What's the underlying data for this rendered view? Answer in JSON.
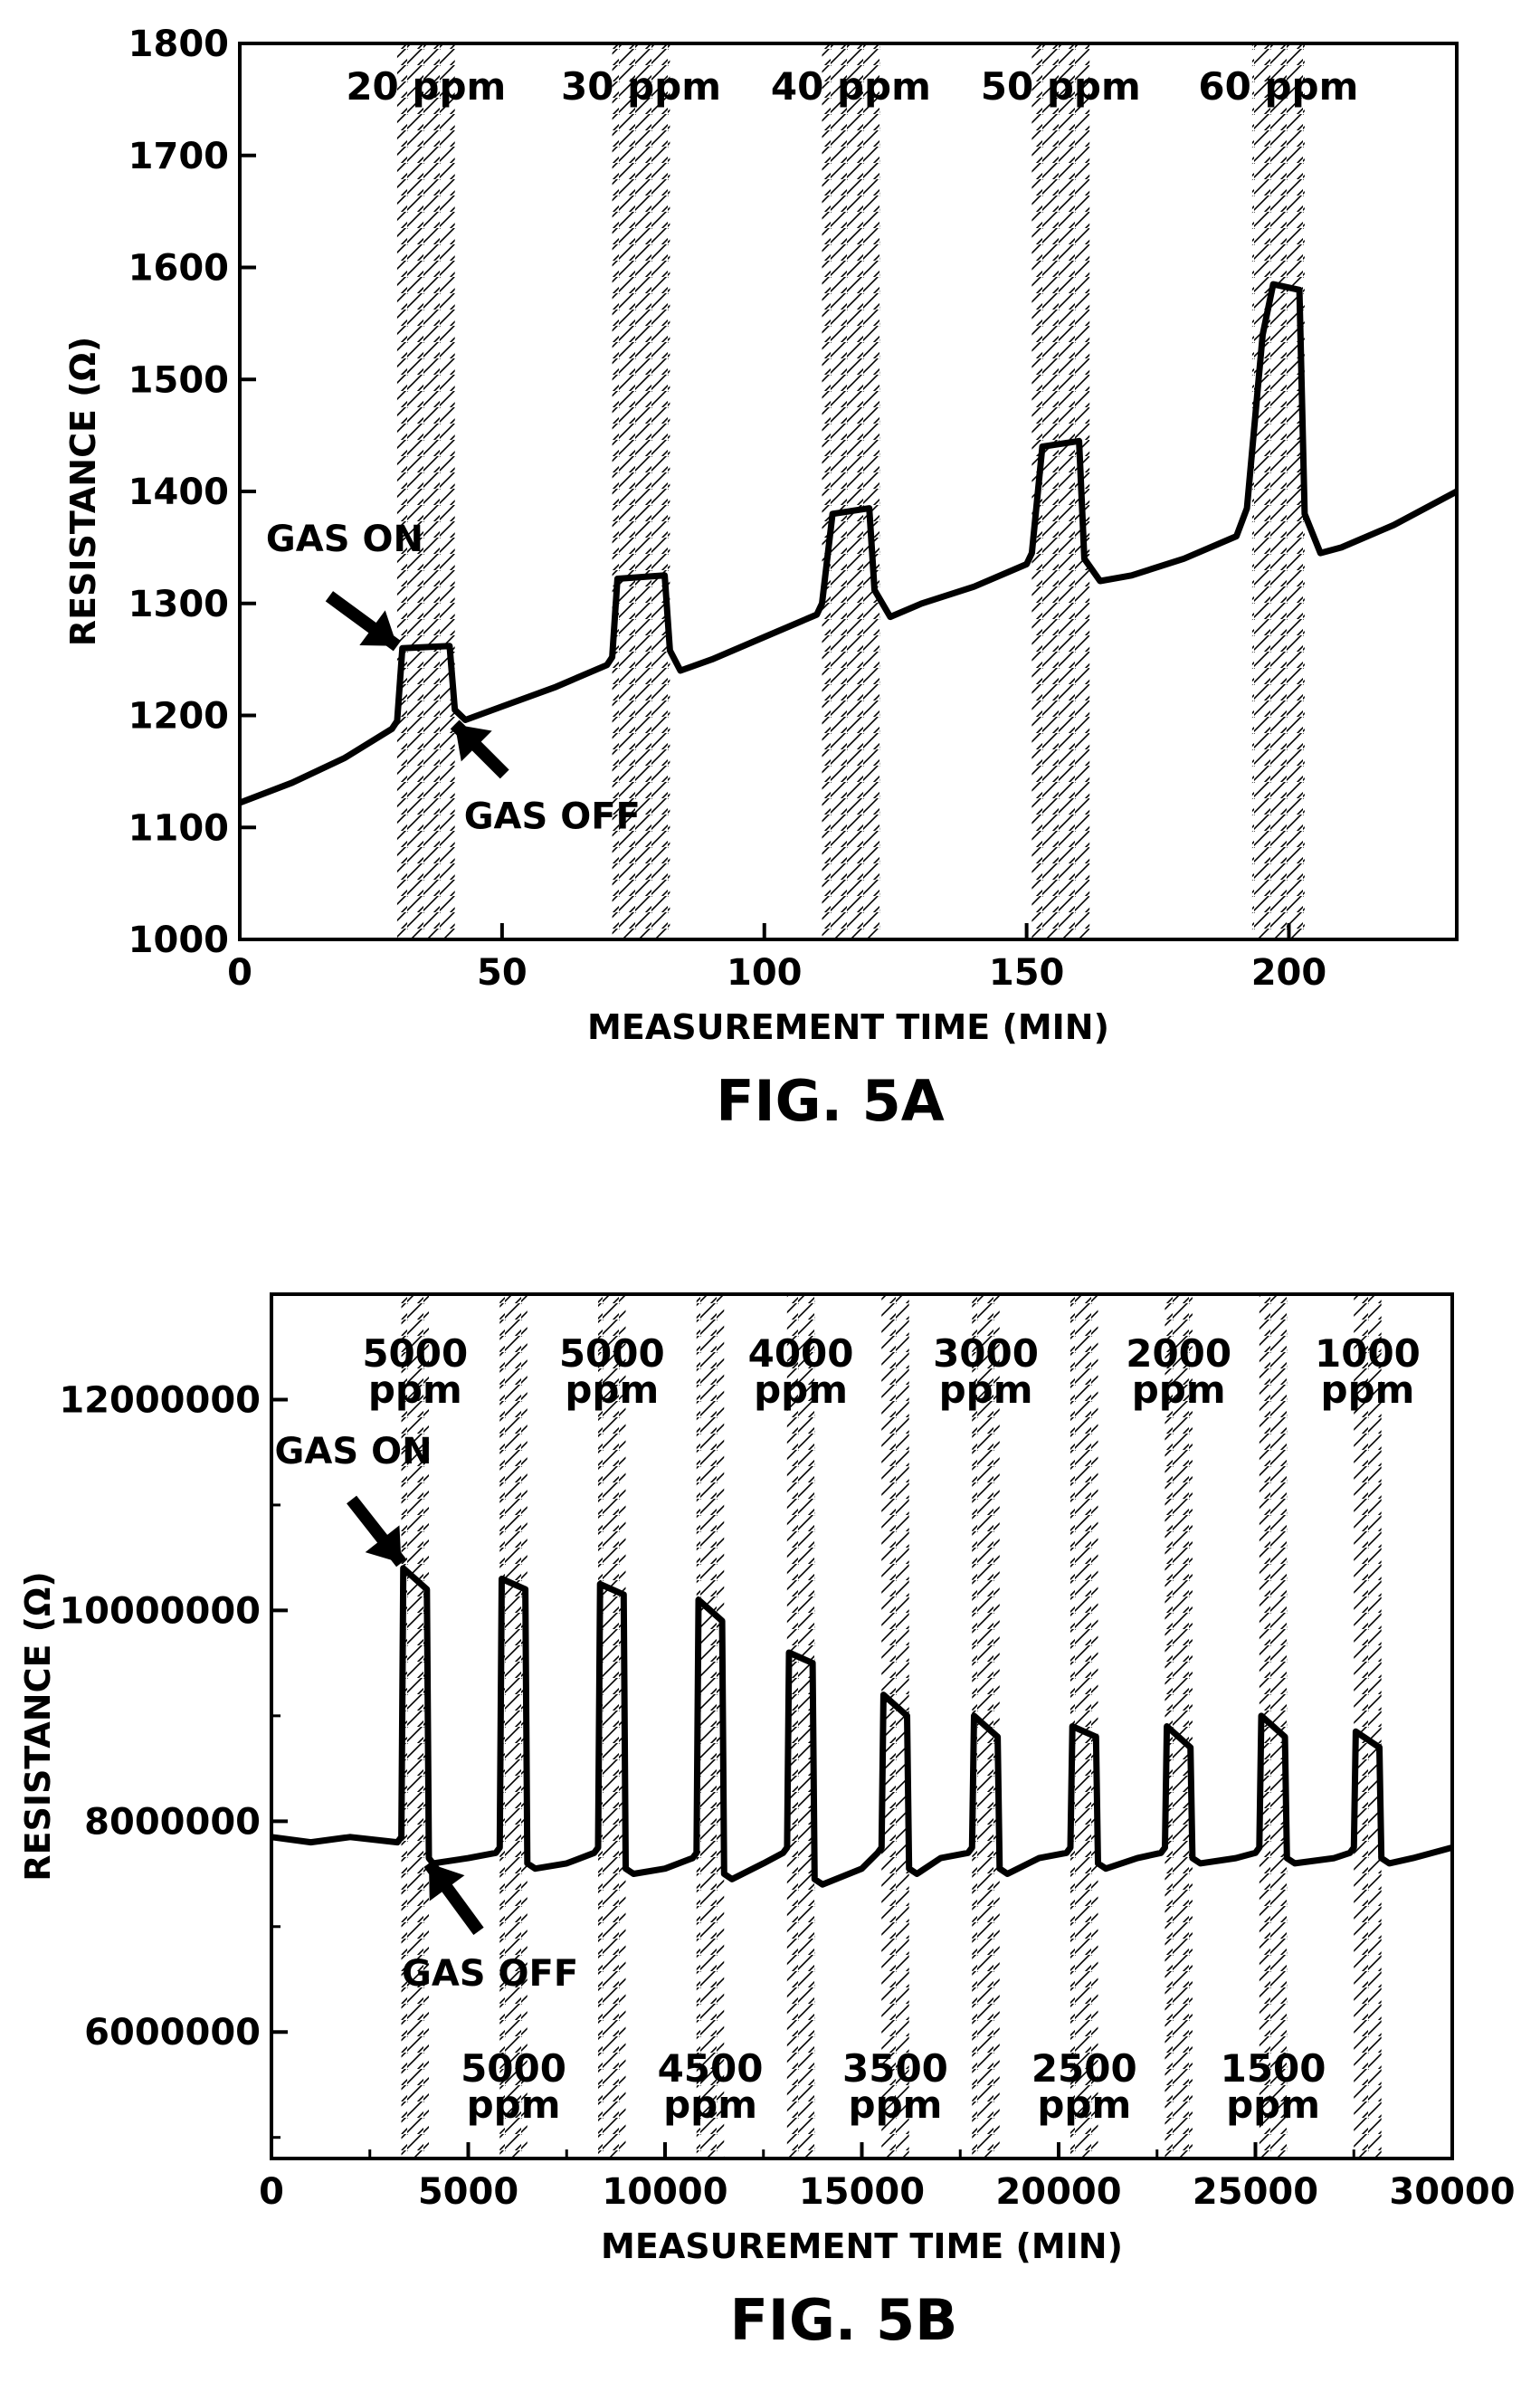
{
  "chart_data": [
    {
      "type": "line",
      "caption": "FIG. 5A",
      "xlabel": "MEASUREMENT TIME (MIN)",
      "ylabel": "RESISTANCE (Ω)",
      "xlim": [
        0,
        232
      ],
      "ylim": [
        1000,
        1800
      ],
      "xticks": [
        0,
        50,
        100,
        150,
        200
      ],
      "yticks": [
        1000,
        1100,
        1200,
        1300,
        1400,
        1500,
        1600,
        1700,
        1800
      ],
      "grid": false,
      "bands": [
        {
          "label": "20 ppm",
          "x0": 30,
          "x1": 41
        },
        {
          "label": "30 ppm",
          "x0": 71,
          "x1": 82
        },
        {
          "label": "40 ppm",
          "x0": 111,
          "x1": 122
        },
        {
          "label": "50 ppm",
          "x0": 151,
          "x1": 162
        },
        {
          "label": "60 ppm",
          "x0": 193,
          "x1": 203
        }
      ],
      "series": [
        {
          "x": [
            0,
            10,
            20,
            29,
            30,
            31,
            40,
            41,
            43,
            50,
            60,
            70,
            71,
            72,
            81,
            82,
            84,
            90,
            100,
            110,
            111,
            113,
            120,
            121,
            124,
            130,
            140,
            150,
            151,
            153,
            160,
            161,
            164,
            170,
            180,
            190,
            192,
            195,
            197,
            202,
            203,
            206,
            210,
            220,
            232
          ],
          "y": [
            1122,
            1140,
            1162,
            1188,
            1195,
            1260,
            1262,
            1205,
            1196,
            1208,
            1225,
            1245,
            1252,
            1322,
            1325,
            1258,
            1240,
            1250,
            1270,
            1290,
            1300,
            1380,
            1385,
            1312,
            1288,
            1300,
            1315,
            1335,
            1345,
            1440,
            1445,
            1340,
            1320,
            1325,
            1340,
            1360,
            1385,
            1540,
            1585,
            1580,
            1380,
            1345,
            1350,
            1370,
            1400
          ]
        }
      ],
      "annotations": [
        {
          "text": "GAS ON",
          "at": [
            30,
            1262
          ]
        },
        {
          "text": "GAS OFF",
          "at": [
            41,
            1192
          ]
        }
      ]
    },
    {
      "type": "line",
      "caption": "FIG. 5B",
      "xlabel": "MEASUREMENT TIME (MIN)",
      "ylabel": "RESISTANCE (Ω)",
      "xlim": [
        0,
        30000
      ],
      "ylim": [
        4800000,
        13000000
      ],
      "xticks": [
        0,
        5000,
        10000,
        15000,
        20000,
        25000,
        30000
      ],
      "xticks_minor": [
        2500,
        7500,
        12500,
        17500,
        22500,
        27500
      ],
      "yticks": [
        6000000,
        8000000,
        10000000,
        12000000
      ],
      "yticks_minor": [
        5000000,
        7000000,
        9000000,
        11000000
      ],
      "grid": false,
      "bands": [
        {
          "label": "5000 ppm",
          "x0": 3300,
          "x1": 4000,
          "pos": "top"
        },
        {
          "label": "5000 ppm",
          "x0": 5800,
          "x1": 6500,
          "pos": "bottom"
        },
        {
          "label": "5000 ppm",
          "x0": 8300,
          "x1": 9000,
          "pos": "top"
        },
        {
          "label": "4500 ppm",
          "x0": 10800,
          "x1": 11500,
          "pos": "bottom"
        },
        {
          "label": "4000 ppm",
          "x0": 13100,
          "x1": 13800,
          "pos": "top"
        },
        {
          "label": "3500 ppm",
          "x0": 15500,
          "x1": 16200,
          "pos": "bottom"
        },
        {
          "label": "3000 ppm",
          "x0": 17800,
          "x1": 18500,
          "pos": "top"
        },
        {
          "label": "2500 ppm",
          "x0": 20300,
          "x1": 21000,
          "pos": "bottom"
        },
        {
          "label": "2000 ppm",
          "x0": 22700,
          "x1": 23400,
          "pos": "top"
        },
        {
          "label": "1500 ppm",
          "x0": 25100,
          "x1": 25800,
          "pos": "bottom"
        },
        {
          "label": "1000 ppm",
          "x0": 27500,
          "x1": 28200,
          "pos": "top"
        }
      ],
      "series": [
        {
          "x": [
            0,
            1000,
            2000,
            3200,
            3300,
            3350,
            3950,
            4000,
            4100,
            5000,
            5700,
            5800,
            5850,
            6450,
            6500,
            6700,
            7500,
            8200,
            8300,
            8350,
            8950,
            9000,
            9200,
            10000,
            10700,
            10800,
            10850,
            11450,
            11500,
            11700,
            12500,
            13000,
            13100,
            13150,
            13750,
            13800,
            14000,
            15000,
            15400,
            15500,
            15550,
            16150,
            16200,
            16400,
            17000,
            17700,
            17800,
            17850,
            18450,
            18500,
            18700,
            19500,
            20200,
            20300,
            20350,
            20950,
            21000,
            21200,
            22000,
            22600,
            22700,
            22750,
            23350,
            23400,
            23600,
            24500,
            25000,
            25100,
            25150,
            25750,
            25800,
            26000,
            27000,
            27400,
            27500,
            27550,
            28150,
            28200,
            28400,
            29000,
            30000
          ],
          "y": [
            7850000,
            7800000,
            7850000,
            7800000,
            7850000,
            10400000,
            10200000,
            7650000,
            7600000,
            7650000,
            7700000,
            7750000,
            10300000,
            10200000,
            7600000,
            7550000,
            7600000,
            7700000,
            7750000,
            10250000,
            10150000,
            7550000,
            7500000,
            7550000,
            7650000,
            7700000,
            10100000,
            9900000,
            7500000,
            7450000,
            7600000,
            7700000,
            7750000,
            9600000,
            9500000,
            7450000,
            7400000,
            7550000,
            7700000,
            7750000,
            9200000,
            9000000,
            7550000,
            7500000,
            7650000,
            7700000,
            7750000,
            9000000,
            8800000,
            7550000,
            7500000,
            7650000,
            7700000,
            7750000,
            8900000,
            8800000,
            7600000,
            7550000,
            7650000,
            7700000,
            7750000,
            8900000,
            8700000,
            7650000,
            7600000,
            7650000,
            7700000,
            7750000,
            9000000,
            8800000,
            7650000,
            7600000,
            7650000,
            7700000,
            7750000,
            8850000,
            8700000,
            7650000,
            7600000,
            7650000,
            7750000
          ]
        }
      ],
      "annotations": [
        {
          "text": "GAS ON",
          "at": [
            3300,
            10450000
          ]
        },
        {
          "text": "GAS OFF",
          "at": [
            4000,
            7600000
          ]
        }
      ]
    }
  ]
}
